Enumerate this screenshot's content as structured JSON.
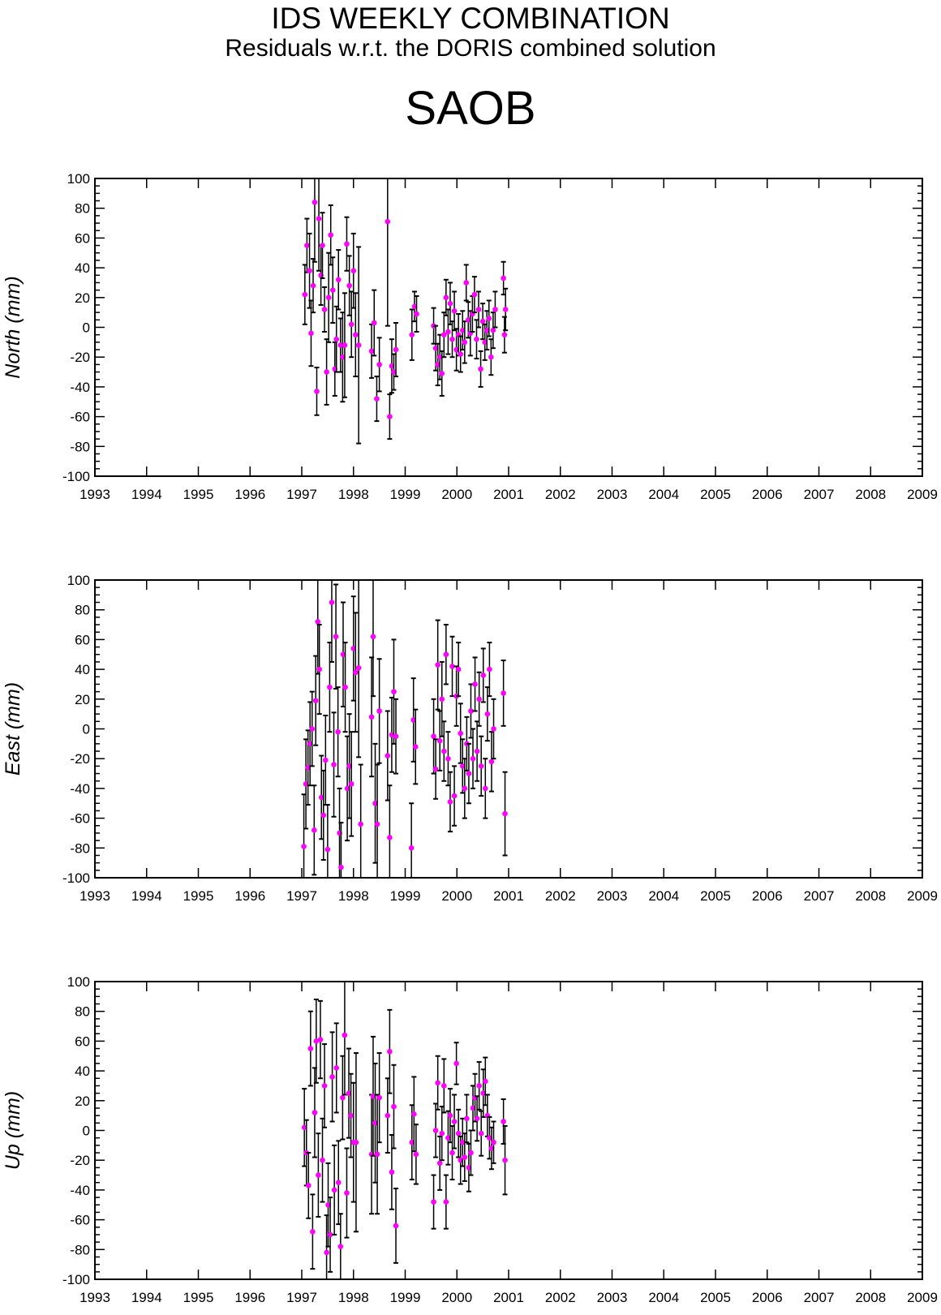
{
  "header": {
    "title": "IDS WEEKLY COMBINATION",
    "subtitle": "Residuals w.r.t. the DORIS combined solution",
    "station": "SAOB"
  },
  "colors": {
    "points": "#ff00ff",
    "errorbars": "#000000",
    "axes": "#000000"
  },
  "chart_data": [
    {
      "type": "scatter",
      "ylabel": "North (mm)",
      "xlim": [
        1993,
        2009
      ],
      "ylim": [
        -100,
        100
      ],
      "xticks": [
        "1993",
        "1994",
        "1995",
        "1996",
        "1997",
        "1998",
        "1999",
        "2000",
        "2001",
        "2002",
        "2003",
        "2004",
        "2005",
        "2006",
        "2007",
        "2008",
        "2009"
      ],
      "yticks": [
        "100",
        "80",
        "60",
        "40",
        "20",
        "0",
        "-20",
        "-40",
        "-60",
        "-80",
        "-100"
      ],
      "points": [
        [
          1997.06,
          22,
          20
        ],
        [
          1997.1,
          55,
          18
        ],
        [
          1997.15,
          38,
          25
        ],
        [
          1997.18,
          -4,
          22
        ],
        [
          1997.22,
          28,
          18
        ],
        [
          1997.25,
          84,
          40
        ],
        [
          1997.29,
          -43,
          16
        ],
        [
          1997.33,
          73,
          35
        ],
        [
          1997.37,
          35,
          20
        ],
        [
          1997.4,
          55,
          22
        ],
        [
          1997.44,
          12,
          15
        ],
        [
          1997.48,
          -30,
          22
        ],
        [
          1997.52,
          20,
          30
        ],
        [
          1997.56,
          62,
          20
        ],
        [
          1997.6,
          25,
          22
        ],
        [
          1997.64,
          -28,
          18
        ],
        [
          1997.67,
          -8,
          22
        ],
        [
          1997.71,
          32,
          20
        ],
        [
          1997.75,
          -12,
          18
        ],
        [
          1997.79,
          -20,
          30
        ],
        [
          1997.83,
          -12,
          35
        ],
        [
          1997.87,
          56,
          18
        ],
        [
          1997.92,
          28,
          20
        ],
        [
          1997.96,
          2,
          22
        ],
        [
          1998.0,
          38,
          25
        ],
        [
          1998.04,
          -5,
          28
        ],
        [
          1998.1,
          -12,
          66
        ],
        [
          1998.35,
          -16,
          18
        ],
        [
          1998.4,
          3,
          22
        ],
        [
          1998.45,
          -48,
          15
        ],
        [
          1998.5,
          -25,
          18
        ],
        [
          1998.66,
          71,
          70
        ],
        [
          1998.7,
          -60,
          15
        ],
        [
          1998.74,
          -26,
          18
        ],
        [
          1998.78,
          -30,
          12
        ],
        [
          1998.82,
          -15,
          18
        ],
        [
          1999.13,
          -5,
          17
        ],
        [
          1999.18,
          14,
          10
        ],
        [
          1999.22,
          9,
          12
        ],
        [
          1999.55,
          1,
          12
        ],
        [
          1999.59,
          -14,
          15
        ],
        [
          1999.63,
          -25,
          14
        ],
        [
          1999.67,
          -20,
          15
        ],
        [
          1999.71,
          -31,
          15
        ],
        [
          1999.75,
          -5,
          15
        ],
        [
          1999.79,
          20,
          12
        ],
        [
          1999.83,
          -3,
          15
        ],
        [
          1999.87,
          16,
          14
        ],
        [
          1999.91,
          -8,
          12
        ],
        [
          1999.95,
          11,
          13
        ],
        [
          1999.99,
          -15,
          14
        ],
        [
          2000.03,
          -5,
          14
        ],
        [
          2000.07,
          -18,
          12
        ],
        [
          2000.11,
          -2,
          13
        ],
        [
          2000.15,
          -10,
          14
        ],
        [
          2000.18,
          30,
          12
        ],
        [
          2000.22,
          5,
          12
        ],
        [
          2000.26,
          -4,
          15
        ],
        [
          2000.3,
          9,
          12
        ],
        [
          2000.34,
          22,
          12
        ],
        [
          2000.38,
          -8,
          13
        ],
        [
          2000.42,
          12,
          12
        ],
        [
          2000.46,
          -28,
          12
        ],
        [
          2000.5,
          4,
          12
        ],
        [
          2000.54,
          -10,
          12
        ],
        [
          2000.58,
          -2,
          13
        ],
        [
          2000.62,
          6,
          12
        ],
        [
          2000.66,
          -20,
          12
        ],
        [
          2000.7,
          -2,
          12
        ],
        [
          2000.74,
          12,
          12
        ],
        [
          2000.9,
          33,
          11
        ],
        [
          2000.92,
          -5,
          12
        ],
        [
          2000.94,
          12,
          14
        ]
      ]
    },
    {
      "type": "scatter",
      "ylabel": "East (mm)",
      "xlim": [
        1993,
        2009
      ],
      "ylim": [
        -100,
        100
      ],
      "xticks": [
        "1993",
        "1994",
        "1995",
        "1996",
        "1997",
        "1998",
        "1999",
        "2000",
        "2001",
        "2002",
        "2003",
        "2004",
        "2005",
        "2006",
        "2007",
        "2008",
        "2009"
      ],
      "yticks": [
        "100",
        "80",
        "60",
        "40",
        "20",
        "0",
        "-20",
        "-40",
        "-60",
        "-80",
        "-100"
      ],
      "points": [
        [
          1997.04,
          -79,
          35
        ],
        [
          1997.08,
          -37,
          30
        ],
        [
          1997.12,
          -26,
          25
        ],
        [
          1997.16,
          -10,
          28
        ],
        [
          1997.2,
          0,
          25
        ],
        [
          1997.24,
          -68,
          30
        ],
        [
          1997.27,
          19,
          30
        ],
        [
          1997.31,
          72,
          35
        ],
        [
          1997.34,
          40,
          30
        ],
        [
          1997.38,
          -46,
          28
        ],
        [
          1997.42,
          -58,
          30
        ],
        [
          1997.46,
          -21,
          30
        ],
        [
          1997.5,
          -81,
          30
        ],
        [
          1997.54,
          28,
          30
        ],
        [
          1997.58,
          85,
          40
        ],
        [
          1997.62,
          -24,
          35
        ],
        [
          1997.66,
          62,
          35
        ],
        [
          1997.7,
          -2,
          30
        ],
        [
          1997.73,
          -70,
          30
        ],
        [
          1997.76,
          -93,
          30
        ],
        [
          1997.8,
          50,
          35
        ],
        [
          1997.84,
          28,
          30
        ],
        [
          1997.88,
          -40,
          35
        ],
        [
          1997.92,
          -25,
          35
        ],
        [
          1997.96,
          -37,
          35
        ],
        [
          1998.0,
          54,
          35
        ],
        [
          1998.04,
          38,
          40
        ],
        [
          1998.1,
          41,
          60
        ],
        [
          1998.14,
          -64,
          40
        ],
        [
          1998.35,
          8,
          40
        ],
        [
          1998.38,
          62,
          40
        ],
        [
          1998.42,
          -50,
          40
        ],
        [
          1998.46,
          -64,
          40
        ],
        [
          1998.5,
          12,
          35
        ],
        [
          1998.66,
          -18,
          30
        ],
        [
          1998.7,
          -73,
          35
        ],
        [
          1998.74,
          -4,
          25
        ],
        [
          1998.78,
          25,
          35
        ],
        [
          1998.82,
          -5,
          25
        ],
        [
          1999.12,
          -80,
          30
        ],
        [
          1999.16,
          6,
          28
        ],
        [
          1999.2,
          -12,
          25
        ],
        [
          1999.55,
          -5,
          25
        ],
        [
          1999.59,
          -27,
          20
        ],
        [
          1999.63,
          43,
          30
        ],
        [
          1999.67,
          -8,
          20
        ],
        [
          1999.71,
          20,
          25
        ],
        [
          1999.75,
          -15,
          20
        ],
        [
          1999.79,
          50,
          20
        ],
        [
          1999.83,
          -20,
          18
        ],
        [
          1999.87,
          -49,
          20
        ],
        [
          1999.91,
          42,
          20
        ],
        [
          1999.95,
          -45,
          20
        ],
        [
          1999.99,
          22,
          20
        ],
        [
          2000.03,
          40,
          18
        ],
        [
          2000.07,
          -3,
          20
        ],
        [
          2000.11,
          -25,
          18
        ],
        [
          2000.15,
          -40,
          20
        ],
        [
          2000.19,
          -10,
          18
        ],
        [
          2000.23,
          -30,
          20
        ],
        [
          2000.27,
          12,
          18
        ],
        [
          2000.31,
          -20,
          20
        ],
        [
          2000.35,
          30,
          18
        ],
        [
          2000.39,
          -15,
          20
        ],
        [
          2000.43,
          20,
          18
        ],
        [
          2000.47,
          -25,
          20
        ],
        [
          2000.51,
          36,
          18
        ],
        [
          2000.55,
          -40,
          20
        ],
        [
          2000.59,
          10,
          18
        ],
        [
          2000.63,
          40,
          18
        ],
        [
          2000.67,
          -22,
          20
        ],
        [
          2000.71,
          0,
          20
        ],
        [
          2000.9,
          24,
          22
        ],
        [
          2000.93,
          -57,
          28
        ]
      ]
    },
    {
      "type": "scatter",
      "ylabel": "Up (mm)",
      "xlim": [
        1993,
        2009
      ],
      "ylim": [
        -100,
        100
      ],
      "xticks": [
        "1993",
        "1994",
        "1995",
        "1996",
        "1997",
        "1998",
        "1999",
        "2000",
        "2001",
        "2002",
        "2003",
        "2004",
        "2005",
        "2006",
        "2007",
        "2008",
        "2009"
      ],
      "yticks": [
        "100",
        "80",
        "60",
        "40",
        "20",
        "0",
        "-20",
        "-40",
        "-60",
        "-80",
        "-100"
      ],
      "points": [
        [
          1997.05,
          2,
          26
        ],
        [
          1997.09,
          -15,
          22
        ],
        [
          1997.13,
          -37,
          22
        ],
        [
          1997.17,
          55,
          25
        ],
        [
          1997.21,
          -68,
          25
        ],
        [
          1997.25,
          12,
          30
        ],
        [
          1997.28,
          60,
          28
        ],
        [
          1997.32,
          -30,
          28
        ],
        [
          1997.36,
          61,
          26
        ],
        [
          1997.4,
          -20,
          28
        ],
        [
          1997.44,
          30,
          28
        ],
        [
          1997.48,
          -82,
          25
        ],
        [
          1997.51,
          -50,
          28
        ],
        [
          1997.55,
          -70,
          25
        ],
        [
          1997.59,
          36,
          30
        ],
        [
          1997.63,
          -40,
          30
        ],
        [
          1997.67,
          42,
          30
        ],
        [
          1997.71,
          -35,
          28
        ],
        [
          1997.75,
          -78,
          22
        ],
        [
          1997.79,
          22,
          28
        ],
        [
          1997.83,
          64,
          40
        ],
        [
          1997.87,
          -42,
          30
        ],
        [
          1997.91,
          25,
          30
        ],
        [
          1997.95,
          10,
          28
        ],
        [
          1998.0,
          -8,
          40
        ],
        [
          1998.05,
          -8,
          60
        ],
        [
          1998.35,
          -16,
          40
        ],
        [
          1998.38,
          23,
          40
        ],
        [
          1998.42,
          5,
          40
        ],
        [
          1998.46,
          -16,
          40
        ],
        [
          1998.5,
          22,
          30
        ],
        [
          1998.66,
          10,
          25
        ],
        [
          1998.7,
          53,
          28
        ],
        [
          1998.74,
          -28,
          25
        ],
        [
          1998.78,
          16,
          28
        ],
        [
          1998.82,
          -64,
          25
        ],
        [
          1999.13,
          -8,
          25
        ],
        [
          1999.17,
          11,
          25
        ],
        [
          1999.21,
          -16,
          20
        ],
        [
          1999.55,
          -48,
          18
        ],
        [
          1999.59,
          0,
          18
        ],
        [
          1999.63,
          32,
          18
        ],
        [
          1999.67,
          -22,
          18
        ],
        [
          1999.71,
          -2,
          18
        ],
        [
          1999.75,
          30,
          18
        ],
        [
          1999.79,
          -48,
          18
        ],
        [
          1999.83,
          -5,
          18
        ],
        [
          1999.87,
          10,
          18
        ],
        [
          1999.91,
          -15,
          18
        ],
        [
          1999.95,
          6,
          18
        ],
        [
          1999.99,
          45,
          14
        ],
        [
          2000.03,
          -2,
          16
        ],
        [
          2000.07,
          -20,
          16
        ],
        [
          2000.11,
          -8,
          16
        ],
        [
          2000.15,
          -18,
          16
        ],
        [
          2000.19,
          8,
          16
        ],
        [
          2000.23,
          -25,
          16
        ],
        [
          2000.27,
          -15,
          15
        ],
        [
          2000.31,
          15,
          15
        ],
        [
          2000.35,
          22,
          16
        ],
        [
          2000.39,
          8,
          15
        ],
        [
          2000.43,
          30,
          16
        ],
        [
          2000.47,
          -2,
          15
        ],
        [
          2000.51,
          25,
          16
        ],
        [
          2000.55,
          33,
          16
        ],
        [
          2000.59,
          10,
          14
        ],
        [
          2000.63,
          -5,
          14
        ],
        [
          2000.67,
          -12,
          14
        ],
        [
          2000.71,
          -8,
          14
        ],
        [
          2000.9,
          6,
          15
        ],
        [
          2000.93,
          -20,
          23
        ]
      ]
    }
  ]
}
